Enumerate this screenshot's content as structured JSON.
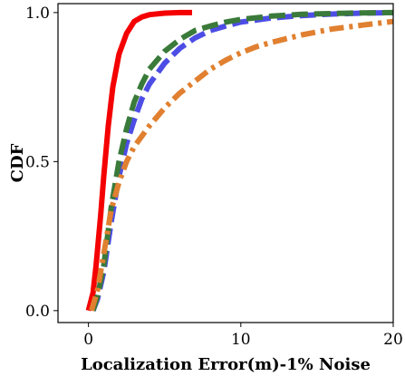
{
  "chart_data": {
    "type": "line",
    "title": "",
    "xlabel": "Localization Error(m)-1% Noise",
    "ylabel": "CDF",
    "xlim": [
      -2,
      20
    ],
    "ylim": [
      -0.04,
      1.03
    ],
    "xticks": [
      0,
      10,
      20
    ],
    "xtick_labels": [
      "0",
      "10",
      "20"
    ],
    "yticks": [
      0.0,
      0.5,
      1.0
    ],
    "ytick_labels": [
      "0.0",
      "0.5",
      "1.0"
    ],
    "grid": false,
    "legend": "none",
    "series": [
      {
        "color": "#f40000",
        "dash": "solid",
        "x": [
          0,
          0.3,
          0.5,
          0.8,
          1.0,
          1.3,
          1.6,
          2.0,
          2.5,
          3.0,
          3.5,
          4.0,
          5.0,
          6.0,
          6.8
        ],
        "y": [
          0.0,
          0.06,
          0.15,
          0.32,
          0.45,
          0.62,
          0.75,
          0.86,
          0.93,
          0.97,
          0.985,
          0.993,
          0.998,
          1.0,
          1.0
        ]
      },
      {
        "color": "#4d4de6",
        "dash": "long-dash",
        "x": [
          0.3,
          0.6,
          1.0,
          1.5,
          2.0,
          2.5,
          3.0,
          3.5,
          4.0,
          5.0,
          6.0,
          7.0,
          8.0,
          9.0,
          10.0,
          12.0,
          14.0,
          16.0,
          18.0,
          20.0
        ],
        "y": [
          0.0,
          0.04,
          0.13,
          0.3,
          0.45,
          0.56,
          0.64,
          0.71,
          0.76,
          0.83,
          0.88,
          0.915,
          0.94,
          0.955,
          0.968,
          0.982,
          0.99,
          0.995,
          0.998,
          1.0
        ]
      },
      {
        "color": "#3a7a3a",
        "dash": "long-dash",
        "x": [
          0.3,
          0.6,
          1.0,
          1.5,
          2.0,
          2.5,
          3.0,
          3.5,
          4.0,
          5.0,
          6.0,
          7.0,
          8.0,
          9.0,
          10.0,
          12.0,
          14.0,
          16.0,
          18.0,
          20.0
        ],
        "y": [
          0.0,
          0.05,
          0.15,
          0.35,
          0.5,
          0.61,
          0.7,
          0.76,
          0.81,
          0.87,
          0.91,
          0.94,
          0.955,
          0.968,
          0.977,
          0.988,
          0.994,
          0.997,
          0.999,
          1.0
        ]
      },
      {
        "color": "#e08030",
        "dash": "dash-dot",
        "x": [
          0.2,
          0.6,
          1.0,
          1.5,
          2.0,
          2.5,
          3.0,
          4.0,
          5.0,
          6.0,
          7.0,
          8.0,
          9.0,
          10.0,
          11.0,
          12.0,
          14.0,
          16.0,
          18.0,
          20.0
        ],
        "y": [
          0.0,
          0.07,
          0.19,
          0.34,
          0.43,
          0.5,
          0.55,
          0.62,
          0.68,
          0.73,
          0.77,
          0.81,
          0.84,
          0.865,
          0.885,
          0.9,
          0.925,
          0.945,
          0.958,
          0.97
        ]
      }
    ]
  }
}
